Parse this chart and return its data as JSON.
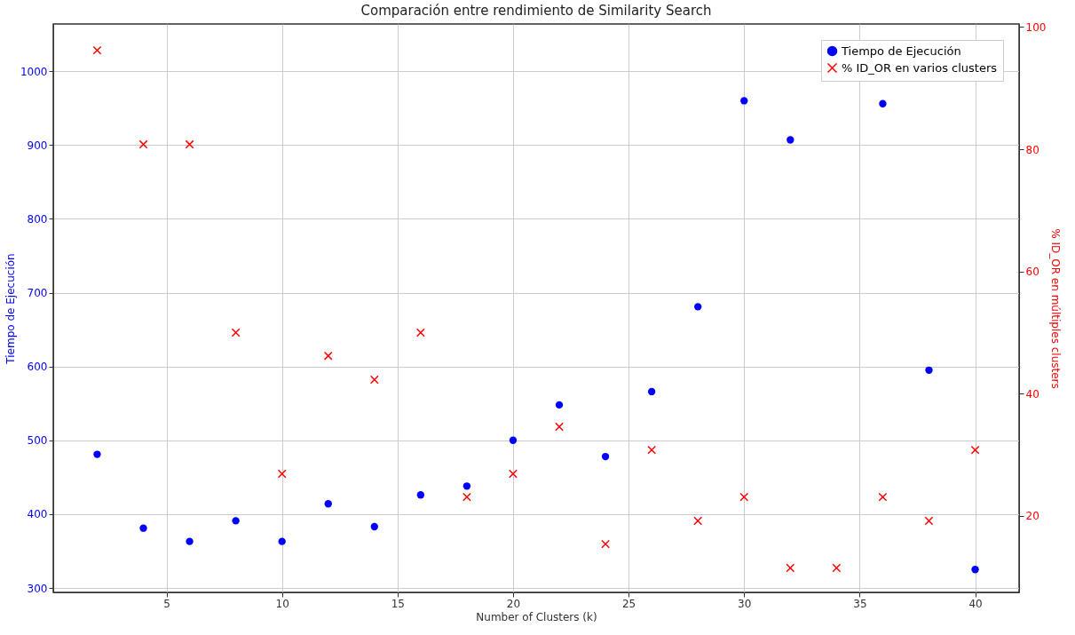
{
  "chart_data": {
    "type": "scatter",
    "title": "Comparación entre rendimiento de Similarity Search",
    "xlabel": "Number of Clusters (k)",
    "ylabel": "Tiempo de Ejecución",
    "y2label": "% ID_OR en múltiples clusters",
    "x": [
      2,
      4,
      6,
      8,
      10,
      12,
      14,
      16,
      18,
      20,
      22,
      24,
      26,
      28,
      30,
      32,
      34,
      36,
      38,
      40
    ],
    "xlim": [
      0.1,
      41.9
    ],
    "xticks": [
      5,
      10,
      15,
      20,
      25,
      30,
      35,
      40
    ],
    "ylim": [
      294,
      1064
    ],
    "yticks": [
      300,
      400,
      500,
      600,
      700,
      800,
      900,
      1000
    ],
    "y2lim": [
      7.5,
      100.5
    ],
    "y2ticks": [
      20,
      40,
      60,
      80,
      100
    ],
    "grid": true,
    "legend": "top right",
    "series": [
      {
        "name": "Tiempo de Ejecución",
        "color": "#0000ff",
        "marker": "circle",
        "values": [
          481,
          381,
          363,
          391,
          363,
          414,
          383,
          426,
          438,
          500,
          548,
          478,
          566,
          681,
          960,
          907,
          null,
          956,
          595,
          325
        ]
      },
      {
        "name": "% ID_OR en varios clusters",
        "color": "#ff0000",
        "marker": "cross",
        "axis": "y2",
        "values": [
          96.2,
          80.8,
          80.8,
          50,
          26.9,
          46.2,
          42.3,
          50,
          23.1,
          26.9,
          34.6,
          15.4,
          30.8,
          19.2,
          23.1,
          11.5,
          11.5,
          23.1,
          19.2,
          30.8
        ]
      }
    ]
  }
}
